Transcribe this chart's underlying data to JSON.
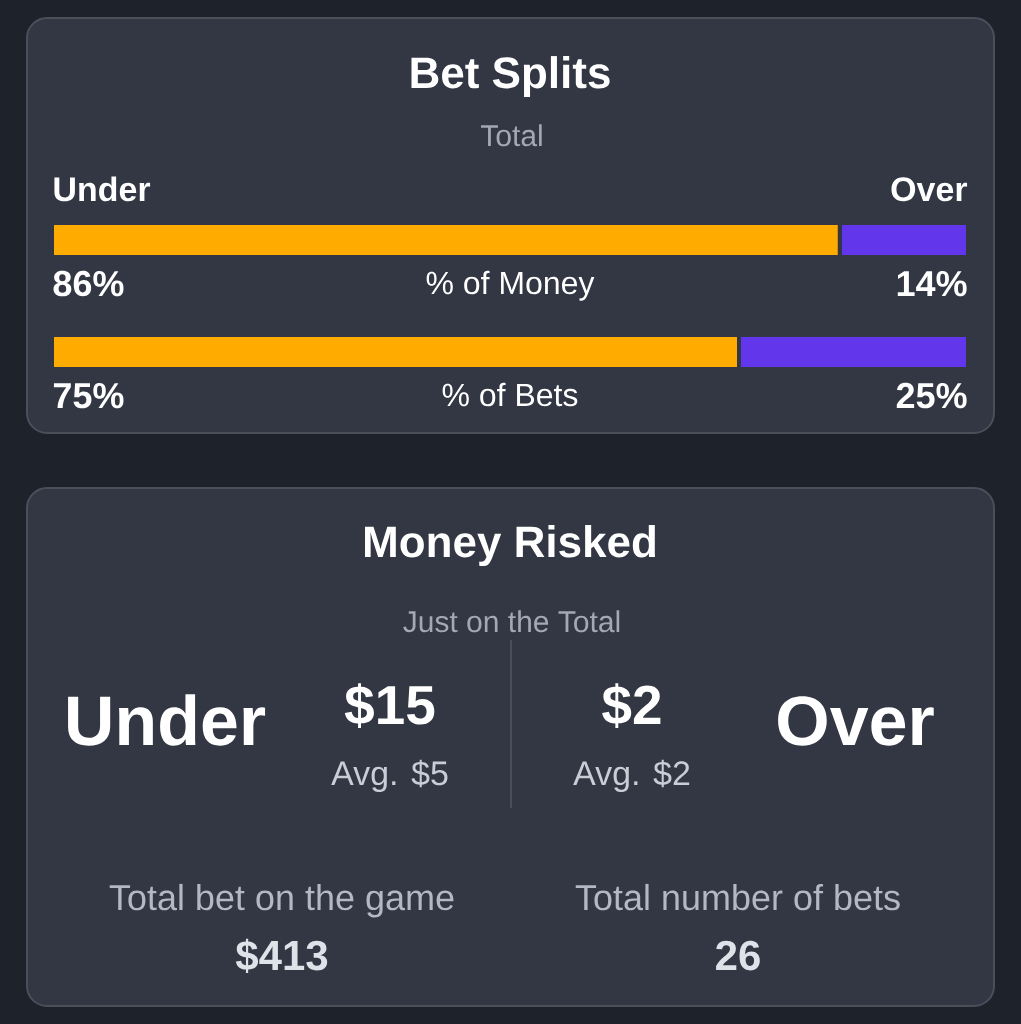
{
  "chart_data": [
    {
      "type": "bar",
      "orientation": "horizontal",
      "stacked": true,
      "title": "Bet Splits",
      "subtitle": "Total",
      "categories": [
        "% of Money",
        "% of Bets"
      ],
      "xlim": [
        0,
        100
      ],
      "tick_labels": "y",
      "series": [
        {
          "name": "Under",
          "color": "#ffab00",
          "values": [
            86,
            75
          ],
          "value_labels": [
            "86%",
            "75%"
          ]
        },
        {
          "name": "Over",
          "color": "#6236ea",
          "values": [
            14,
            25
          ],
          "value_labels": [
            "14%",
            "25%"
          ]
        }
      ]
    },
    {
      "type": "other",
      "title": "Money Risked",
      "subtitle": "Just on the Total",
      "annotations": [
        "Under",
        "$15",
        "Avg. $5",
        "$2",
        "Avg. $2",
        "Over",
        "Total bet on the game",
        "$413",
        "Total number of bets",
        "26"
      ]
    }
  ]
}
